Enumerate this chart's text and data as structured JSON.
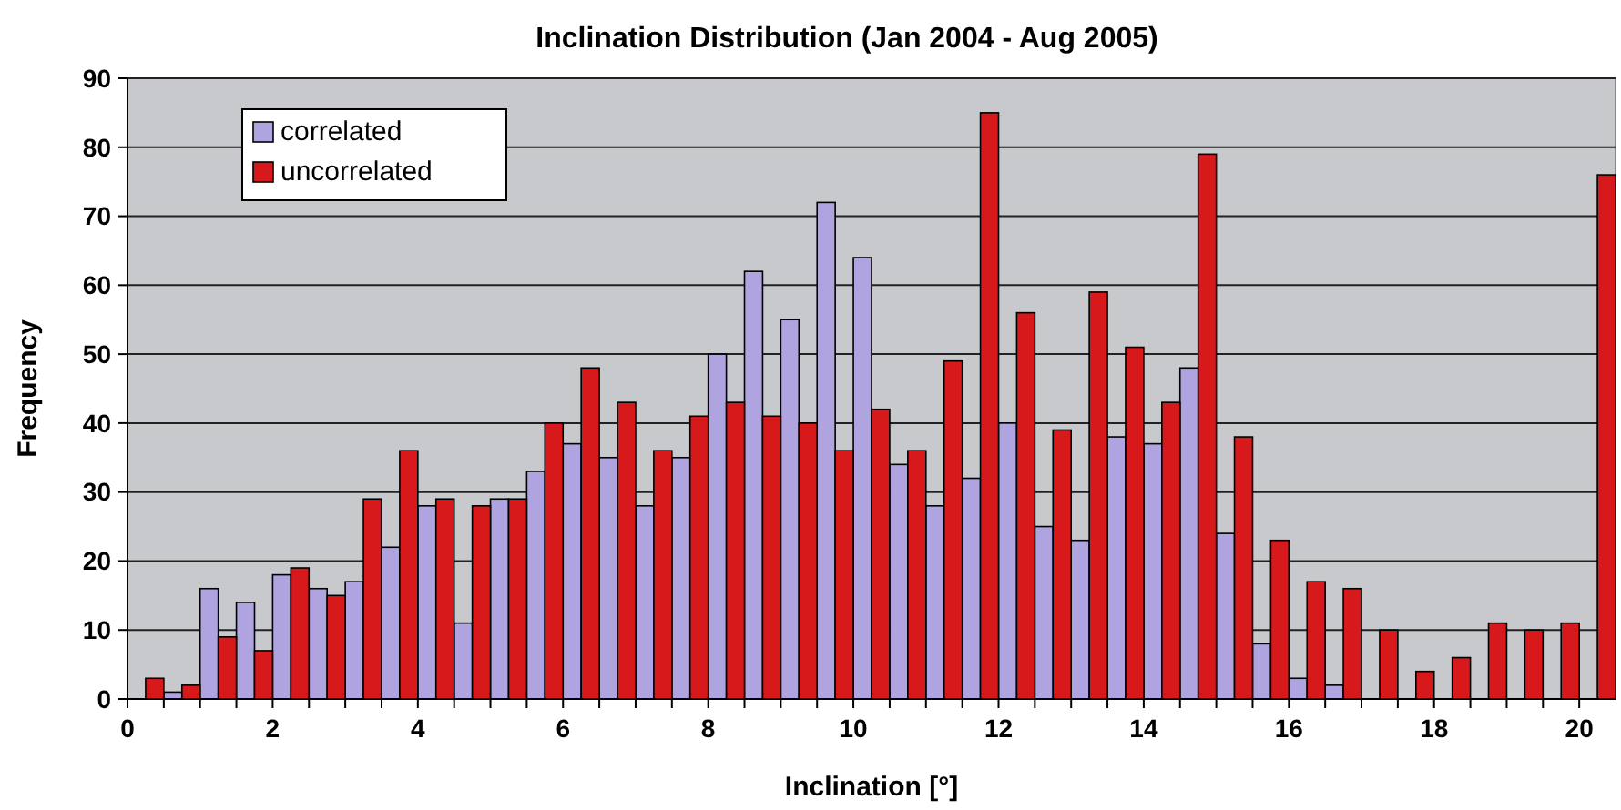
{
  "chart_data": {
    "type": "bar",
    "title": "Inclination Distribution (Jan 2004 - Aug 2005)",
    "xlabel": "Inclination [°]",
    "ylabel": "Frequency",
    "x": [
      0.25,
      0.75,
      1.25,
      1.75,
      2.25,
      2.75,
      3.25,
      3.75,
      4.25,
      4.75,
      5.25,
      5.75,
      6.25,
      6.75,
      7.25,
      7.75,
      8.25,
      8.75,
      9.25,
      9.75,
      10.25,
      10.75,
      11.25,
      11.75,
      12.25,
      12.75,
      13.25,
      13.75,
      14.25,
      14.75,
      15.25,
      15.75,
      16.25,
      16.75,
      17.25,
      17.75,
      18.25,
      18.75,
      19.25,
      19.75,
      20.25
    ],
    "series": [
      {
        "name": "correlated",
        "color": "#b0a4e0",
        "values": [
          0,
          1,
          16,
          14,
          18,
          16,
          17,
          22,
          28,
          11,
          29,
          33,
          37,
          35,
          28,
          35,
          50,
          62,
          55,
          72,
          64,
          34,
          28,
          32,
          40,
          25,
          23,
          38,
          37,
          48,
          24,
          8,
          3,
          2,
          0,
          0,
          0,
          0,
          0,
          0,
          0
        ]
      },
      {
        "name": "uncorrelated",
        "color": "#d7191c",
        "values": [
          3,
          2,
          9,
          7,
          19,
          15,
          29,
          36,
          29,
          28,
          29,
          40,
          48,
          43,
          36,
          41,
          43,
          41,
          40,
          36,
          42,
          36,
          49,
          85,
          56,
          39,
          59,
          51,
          43,
          79,
          38,
          23,
          17,
          16,
          10,
          4,
          6,
          11,
          10,
          11,
          76
        ]
      }
    ],
    "xlim": [
      0,
      20.5
    ],
    "xticks": [
      0,
      {
        "value": 0.5,
        "label": null
      },
      2,
      {
        "value": 1,
        "label": null
      },
      {
        "value": 1.5,
        "label": null
      },
      {
        "value": 2.5,
        "label": null
      },
      {
        "value": 3,
        "label": null
      },
      {
        "value": 3.5,
        "label": null
      },
      4,
      {
        "value": 4.5,
        "label": null
      },
      {
        "value": 5,
        "label": null
      },
      {
        "value": 5.5,
        "label": null
      },
      6,
      {
        "value": 6.5,
        "label": null
      },
      {
        "value": 7,
        "label": null
      },
      {
        "value": 7.5,
        "label": null
      },
      8,
      {
        "value": 8.5,
        "label": null
      },
      {
        "value": 9,
        "label": null
      },
      {
        "value": 9.5,
        "label": null
      },
      10,
      {
        "value": 10.5,
        "label": null
      },
      {
        "value": 11,
        "label": null
      },
      {
        "value": 11.5,
        "label": null
      },
      12,
      {
        "value": 12.5,
        "label": null
      },
      {
        "value": 13,
        "label": null
      },
      {
        "value": 13.5,
        "label": null
      },
      14,
      {
        "value": 14.5,
        "label": null
      },
      {
        "value": 15,
        "label": null
      },
      {
        "value": 15.5,
        "label": null
      },
      16,
      {
        "value": 16.5,
        "label": null
      },
      {
        "value": 17,
        "label": null
      },
      {
        "value": 17.5,
        "label": null
      },
      18,
      {
        "value": 18.5,
        "label": null
      },
      {
        "value": 19,
        "label": null
      },
      {
        "value": 19.5,
        "label": null
      },
      20
    ],
    "ylim": [
      0,
      90
    ],
    "yticks": [
      0,
      10,
      20,
      30,
      40,
      50,
      60,
      70,
      80,
      90
    ],
    "grid": "y",
    "legend": "top left"
  }
}
